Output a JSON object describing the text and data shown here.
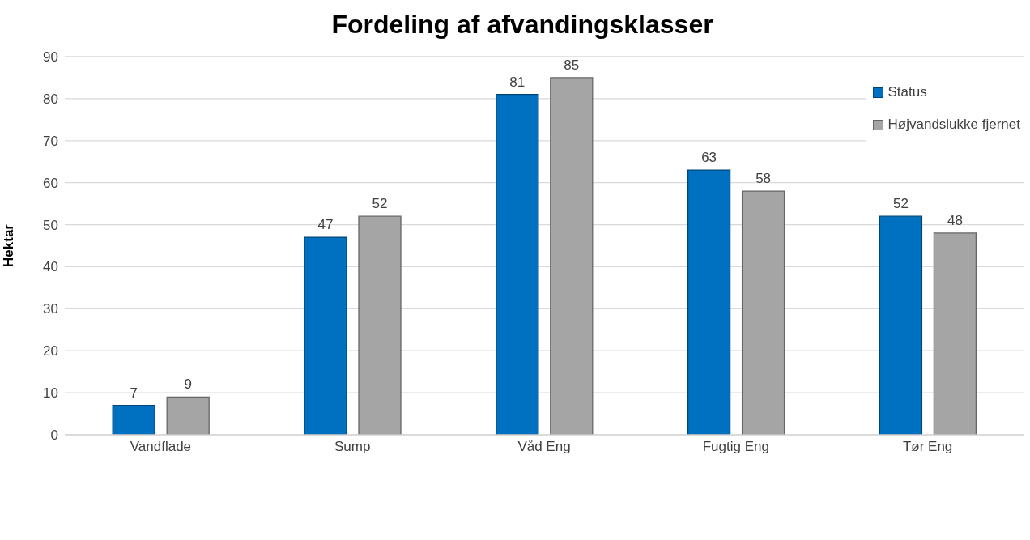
{
  "chart_data": {
    "type": "bar",
    "title": "Fordeling af afvandingsklasser",
    "ylabel": "Hektar",
    "categories": [
      "Vandflade",
      "Sump",
      "Våd Eng",
      "Fugtig Eng",
      "Tør Eng"
    ],
    "series": [
      {
        "name": "Status",
        "color": "#0070c0",
        "values": [
          7,
          47,
          81,
          63,
          52
        ]
      },
      {
        "name": "Højvandslukke fjernet",
        "color": "#a5a5a5",
        "values": [
          9,
          52,
          85,
          58,
          48
        ]
      }
    ],
    "ylim": [
      0,
      90
    ],
    "yticks": [
      0,
      10,
      20,
      30,
      40,
      50,
      60,
      70,
      80,
      90
    ],
    "grid": "y",
    "legend": "top right",
    "data_labels": true
  }
}
